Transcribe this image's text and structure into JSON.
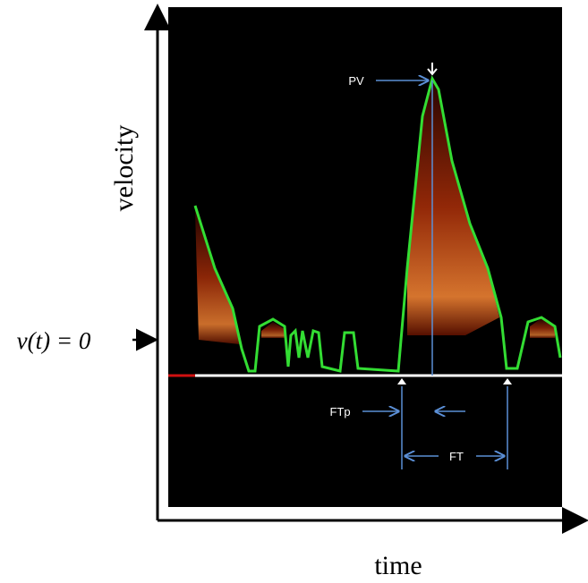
{
  "axes": {
    "y_label": "velocity",
    "x_label": "time",
    "zero_label": "v(t) = 0"
  },
  "annotations": {
    "peak_velocity": "PV",
    "time_to_peak": "FTp",
    "flow_time": "FT"
  }
}
